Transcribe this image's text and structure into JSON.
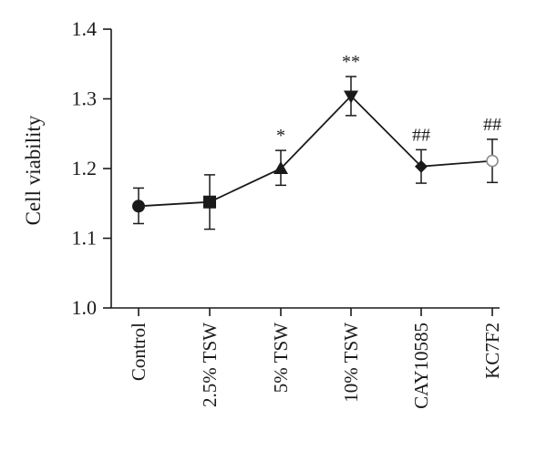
{
  "chart_data": {
    "type": "line",
    "categories": [
      "Control",
      "2.5% TSW",
      "5% TSW",
      "10% TSW",
      "CAY10585",
      "KC7F2"
    ],
    "values": [
      1.146,
      1.152,
      1.2,
      1.304,
      1.203,
      1.211
    ],
    "error_low": [
      1.121,
      1.113,
      1.176,
      1.276,
      1.179,
      1.18
    ],
    "error_high": [
      1.172,
      1.191,
      1.226,
      1.332,
      1.227,
      1.242
    ],
    "markers": [
      "circle",
      "square",
      "triangle-up",
      "triangle-down",
      "diamond",
      "circle-open"
    ],
    "annotations": [
      "",
      "",
      "*",
      "**",
      "##",
      "##"
    ],
    "ylabel": "Cell viability",
    "xlabel": "",
    "ylim": [
      1.0,
      1.4
    ],
    "yticks": [
      "1.0",
      "1.1",
      "1.2",
      "1.3",
      "1.4"
    ],
    "grid": false,
    "colors": {
      "series": "#1a1a1a",
      "open_marker": "#8c8c8c"
    }
  }
}
